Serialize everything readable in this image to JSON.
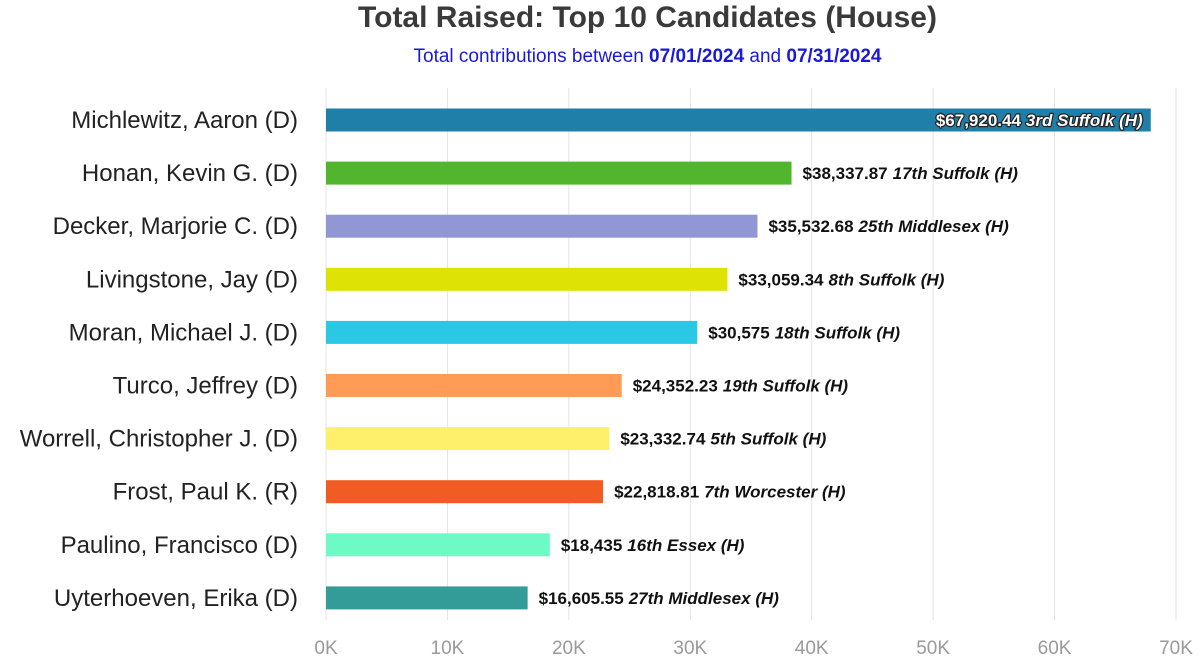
{
  "title": "Total Raised: Top 10 Candidates  (House)",
  "subtitle": {
    "prefix": "Total contributions between",
    "start_date": "07/01/2024",
    "connector": "and",
    "end_date": "07/31/2024"
  },
  "chart_data": {
    "type": "bar",
    "orientation": "horizontal",
    "title": "Total Raised: Top 10 Candidates  (House)",
    "subtitle": "Total contributions between 07/01/2024 and 07/31/2024",
    "xlabel": "",
    "ylabel": "",
    "xlim": [
      0,
      70000
    ],
    "grid": true,
    "x_ticks": [
      0,
      10000,
      20000,
      30000,
      40000,
      50000,
      60000,
      70000
    ],
    "x_tick_labels": [
      "0K",
      "10K",
      "20K",
      "30K",
      "40K",
      "50K",
      "60K",
      "70K"
    ],
    "categories": [
      "Michlewitz, Aaron (D)",
      "Honan, Kevin G. (D)",
      "Decker, Marjorie C. (D)",
      "Livingstone, Jay (D)",
      "Moran, Michael J. (D)",
      "Turco, Jeffrey (D)",
      "Worrell, Christopher J. (D)",
      "Frost, Paul K. (R)",
      "Paulino, Francisco (D)",
      "Uyterhoeven, Erika (D)"
    ],
    "values": [
      67920.44,
      38337.87,
      35532.68,
      33059.34,
      30575,
      24352.23,
      23332.74,
      22818.81,
      18435,
      16605.55
    ],
    "value_labels": [
      "$67,920.44",
      "$38,337.87",
      "$35,532.68",
      "$33,059.34",
      "$30,575",
      "$24,352.23",
      "$23,332.74",
      "$22,818.81",
      "$18,435",
      "$16,605.55"
    ],
    "districts": [
      "3rd Suffolk (H)",
      "17th Suffolk (H)",
      "25th Middlesex (H)",
      "8th Suffolk (H)",
      "18th Suffolk (H)",
      "19th Suffolk (H)",
      "5th Suffolk (H)",
      "7th Worcester (H)",
      "16th Essex (H)",
      "27th Middlesex (H)"
    ],
    "colors": [
      "#1f7fa8",
      "#52b52e",
      "#9196d4",
      "#dfe205",
      "#29c9e6",
      "#ff9a57",
      "#fff06b",
      "#f05c24",
      "#6dfac4",
      "#339c98"
    ]
  }
}
